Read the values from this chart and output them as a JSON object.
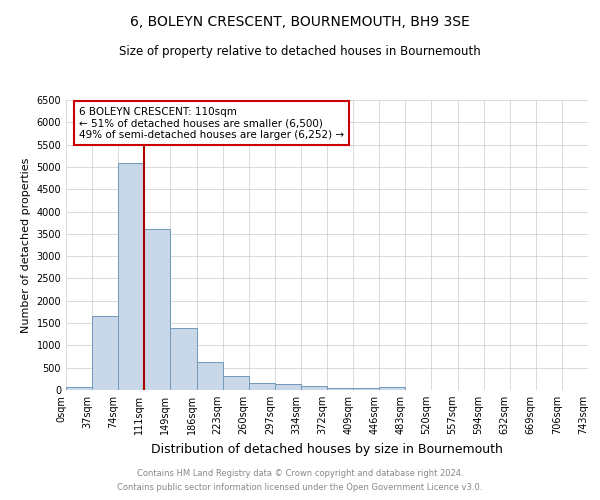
{
  "title": "6, BOLEYN CRESCENT, BOURNEMOUTH, BH9 3SE",
  "subtitle": "Size of property relative to detached houses in Bournemouth",
  "xlabel": "Distribution of detached houses by size in Bournemouth",
  "ylabel": "Number of detached properties",
  "bin_labels": [
    "0sqm",
    "37sqm",
    "74sqm",
    "111sqm",
    "149sqm",
    "186sqm",
    "223sqm",
    "260sqm",
    "297sqm",
    "334sqm",
    "372sqm",
    "409sqm",
    "446sqm",
    "483sqm",
    "520sqm",
    "557sqm",
    "594sqm",
    "632sqm",
    "669sqm",
    "706sqm",
    "743sqm"
  ],
  "bar_values": [
    75,
    1650,
    5080,
    3600,
    1400,
    620,
    310,
    160,
    130,
    95,
    45,
    35,
    60,
    0,
    0,
    0,
    0,
    0,
    0,
    0
  ],
  "bar_color": "#c8d8e8",
  "bar_edge_color": "#7098b8",
  "vline_color": "#aa0000",
  "annotation_text": "6 BOLEYN CRESCENT: 110sqm\n← 51% of detached houses are smaller (6,500)\n49% of semi-detached houses are larger (6,252) →",
  "annotation_box_color": "white",
  "annotation_box_edge_color": "#cc0000",
  "ylim": [
    0,
    6500
  ],
  "yticks": [
    0,
    500,
    1000,
    1500,
    2000,
    2500,
    3000,
    3500,
    4000,
    4500,
    5000,
    5500,
    6000,
    6500
  ],
  "footnote1": "Contains HM Land Registry data © Crown copyright and database right 2024.",
  "footnote2": "Contains public sector information licensed under the Open Government Licence v3.0.",
  "title_fontsize": 10,
  "subtitle_fontsize": 8.5,
  "xlabel_fontsize": 9,
  "ylabel_fontsize": 8,
  "tick_fontsize": 7,
  "annotation_fontsize": 7.5,
  "footnote_fontsize": 6,
  "background_color": "#ffffff",
  "grid_color": "#cccccc"
}
